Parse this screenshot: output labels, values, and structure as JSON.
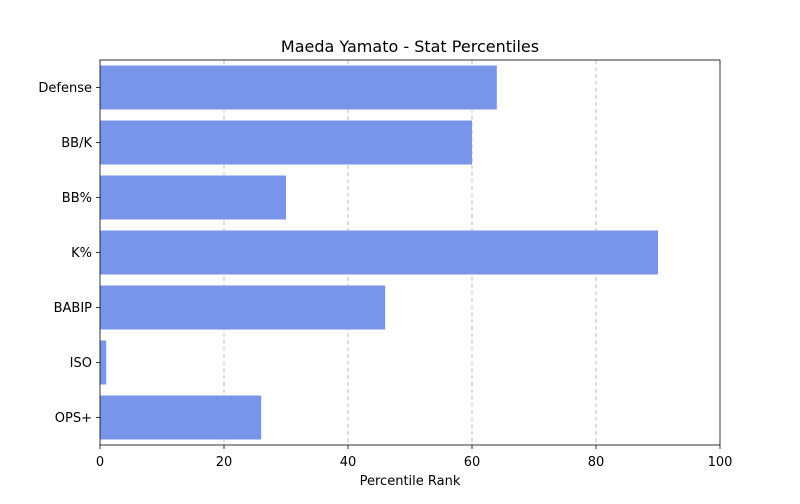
{
  "chart_data": {
    "type": "bar",
    "orientation": "horizontal",
    "title": "Maeda Yamato - Stat Percentiles",
    "xlabel": "Percentile Rank",
    "ylabel": "",
    "categories": [
      "Defense",
      "BB/K",
      "BB%",
      "K%",
      "BABIP",
      "ISO",
      "OPS+"
    ],
    "values": [
      64,
      60,
      30,
      90,
      46,
      1,
      26
    ],
    "xlim": [
      0,
      100
    ],
    "xticks": [
      0,
      20,
      40,
      60,
      80,
      100
    ],
    "grid": "x-axis dashed",
    "bar_color": "#7895e9",
    "legend": "none"
  }
}
